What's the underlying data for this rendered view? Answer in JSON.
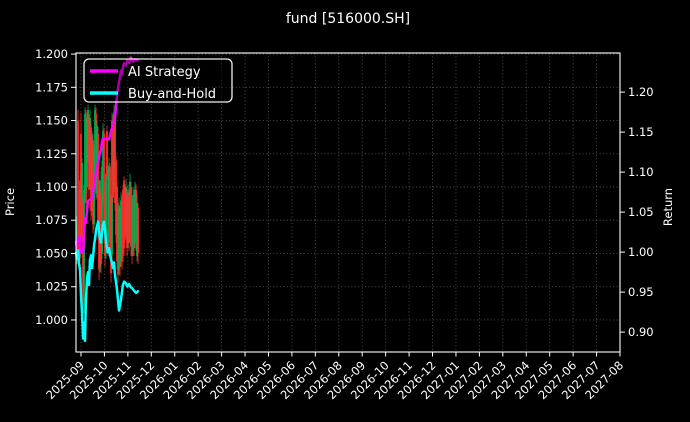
{
  "title": "fund [516000.SH]",
  "legend": {
    "items": [
      {
        "label": "AI Strategy",
        "color": "#ff00ff"
      },
      {
        "label": "Buy-and-Hold",
        "color": "#00ffff"
      }
    ]
  },
  "axes": {
    "x": {
      "tick_labels": [
        "2025-09",
        "2025-10",
        "2025-11",
        "2025-12",
        "2026-01",
        "2026-02",
        "2026-03",
        "2026-04",
        "2026-05",
        "2026-06",
        "2026-07",
        "2026-08",
        "2026-09",
        "2026-10",
        "2026-11",
        "2026-12",
        "2027-01",
        "2027-02",
        "2027-03",
        "2027-04",
        "2027-05",
        "2027-06",
        "2027-07",
        "2027-08"
      ],
      "rotation_deg": 45
    },
    "price": {
      "label": "Price",
      "ticks": [
        1.0,
        1.025,
        1.05,
        1.075,
        1.1,
        1.125,
        1.15,
        1.175,
        1.2
      ]
    },
    "return": {
      "label": "Return",
      "ticks": [
        0.9,
        0.95,
        1.0,
        1.05,
        1.1,
        1.15,
        1.2
      ]
    }
  },
  "colors": {
    "background": "#000000",
    "text": "#ffffff",
    "grid": "#aaaaaa",
    "spine": "#ffffff",
    "candle_up": "#00b050",
    "candle_down": "#ff2a2a",
    "ai_strategy": "#ff00ff",
    "buy_and_hold": "#00ffff"
  },
  "chart_data": {
    "type": "line",
    "title": "fund [516000.SH]",
    "subtitle": "",
    "x_unit": "months since 2025-09 (monthly ticks)",
    "categories": [
      "2025-09",
      "2025-10",
      "2025-11",
      "2025-12",
      "2026-01",
      "2026-02",
      "2026-03",
      "2026-04",
      "2026-05",
      "2026-06",
      "2026-07",
      "2026-08",
      "2026-09",
      "2026-10",
      "2026-11",
      "2026-12",
      "2027-01",
      "2027-02",
      "2027-03",
      "2027-04",
      "2027-05",
      "2027-06",
      "2027-07",
      "2027-08"
    ],
    "xlim": [
      -0.213,
      23.0
    ],
    "grid": "dotted, on left-axis price ticks and monthly x ticks",
    "legend_position": "upper left",
    "y_left": {
      "label": "Price",
      "lim": [
        0.9759,
        1.2008
      ],
      "ticks": [
        1.0,
        1.025,
        1.05,
        1.075,
        1.1,
        1.125,
        1.15,
        1.175,
        1.2
      ]
    },
    "y_right": {
      "label": "Return",
      "lim": [
        0.8751,
        1.2489
      ],
      "ticks": [
        0.9,
        0.95,
        1.0,
        1.05,
        1.1,
        1.15,
        1.2
      ]
    },
    "series": [
      {
        "name": "AI Strategy",
        "axis": "right",
        "color": "#ff00ff",
        "linewidth": 2.5,
        "x": [
          -0.213,
          -0.17,
          -0.12,
          -0.06,
          0.0,
          0.04,
          0.09,
          0.13,
          0.17,
          0.21,
          0.26,
          0.3,
          0.38,
          0.47,
          0.51,
          0.56,
          0.6,
          0.64,
          0.68,
          0.73,
          0.77,
          0.81,
          0.85,
          0.9,
          0.94,
          1.03,
          1.11,
          1.2,
          1.28,
          1.37,
          1.41,
          1.45,
          1.5,
          1.54,
          1.58,
          1.62,
          1.67,
          1.71,
          1.75,
          1.79,
          1.84,
          1.92,
          1.97,
          2.05,
          2.13,
          2.22,
          2.3,
          2.43
        ],
        "y": [
          1.013,
          1.005,
          1.018,
          1.02,
          0.999,
          1.004,
          1.0,
          1.021,
          1.042,
          1.037,
          1.053,
          1.064,
          1.066,
          1.067,
          1.075,
          1.084,
          1.092,
          1.1,
          1.109,
          1.112,
          1.118,
          1.125,
          1.127,
          1.139,
          1.142,
          1.141,
          1.142,
          1.141,
          1.151,
          1.16,
          1.163,
          1.168,
          1.183,
          1.196,
          1.205,
          1.213,
          1.22,
          1.227,
          1.222,
          1.231,
          1.236,
          1.233,
          1.24,
          1.236,
          1.243,
          1.238,
          1.241,
          1.24
        ]
      },
      {
        "name": "Buy-and-Hold",
        "axis": "right",
        "color": "#00ffff",
        "linewidth": 2.5,
        "x": [
          -0.213,
          -0.17,
          -0.12,
          -0.09,
          -0.04,
          0.0,
          0.04,
          0.09,
          0.13,
          0.17,
          0.21,
          0.26,
          0.3,
          0.34,
          0.38,
          0.43,
          0.47,
          0.51,
          0.56,
          0.6,
          0.64,
          0.68,
          0.73,
          0.77,
          0.81,
          0.85,
          0.9,
          0.94,
          0.98,
          1.03,
          1.07,
          1.11,
          1.15,
          1.2,
          1.24,
          1.32,
          1.37,
          1.41,
          1.45,
          1.5,
          1.54,
          1.58,
          1.62,
          1.67,
          1.71,
          1.75,
          1.79,
          1.84,
          1.92,
          1.97,
          2.05,
          2.13,
          2.18,
          2.26,
          2.35,
          2.43
        ],
        "y": [
          0.999,
          0.992,
          1.002,
          0.987,
          0.977,
          0.946,
          0.927,
          0.892,
          0.912,
          0.889,
          0.94,
          0.967,
          0.975,
          0.959,
          0.99,
          0.996,
          0.98,
          0.992,
          1.009,
          1.017,
          1.027,
          1.032,
          1.038,
          1.027,
          1.017,
          1.012,
          1.025,
          1.034,
          1.038,
          1.027,
          1.012,
          1.005,
          1.0,
          1.005,
          0.996,
          0.987,
          0.98,
          0.987,
          0.971,
          0.962,
          0.952,
          0.94,
          0.927,
          0.934,
          0.942,
          0.95,
          0.959,
          0.963,
          0.961,
          0.957,
          0.96,
          0.956,
          0.955,
          0.952,
          0.949,
          0.951
        ]
      }
    ],
    "candlesticks": {
      "axis": "left",
      "up_color": "#00b050",
      "down_color": "#ff2a2a",
      "t_start": -0.17,
      "t_step": 0.0427,
      "ohlc": [
        [
          1.05,
          1.078,
          1.042,
          1.072
        ],
        [
          1.15,
          1.158,
          1.048,
          1.07
        ],
        [
          1.072,
          1.098,
          1.038,
          1.045
        ],
        [
          1.048,
          1.112,
          1.045,
          1.105
        ],
        [
          1.14,
          1.156,
          1.047,
          1.062
        ],
        [
          1.062,
          1.122,
          1.058,
          1.118
        ],
        [
          1.088,
          1.092,
          1.002,
          1.012
        ],
        [
          1.01,
          1.102,
          1.005,
          1.098
        ],
        [
          1.095,
          1.16,
          1.088,
          1.155
        ],
        [
          1.152,
          1.158,
          1.082,
          1.088
        ],
        [
          1.1,
          1.156,
          1.095,
          1.15
        ],
        [
          1.122,
          1.162,
          1.118,
          1.158
        ],
        [
          1.15,
          1.155,
          1.092,
          1.098
        ],
        [
          1.1,
          1.158,
          1.098,
          1.152
        ],
        [
          1.145,
          1.15,
          1.075,
          1.082
        ],
        [
          1.082,
          1.142,
          1.078,
          1.138
        ],
        [
          1.135,
          1.14,
          1.065,
          1.072
        ],
        [
          1.072,
          1.132,
          1.068,
          1.128
        ],
        [
          1.102,
          1.162,
          1.098,
          1.158
        ],
        [
          1.155,
          1.16,
          1.09,
          1.095
        ],
        [
          1.095,
          1.15,
          1.092,
          1.146
        ],
        [
          1.14,
          1.145,
          1.06,
          1.068
        ],
        [
          1.1,
          1.105,
          1.03,
          1.038
        ],
        [
          1.04,
          1.112,
          1.036,
          1.105
        ],
        [
          1.095,
          1.098,
          1.035,
          1.042
        ],
        [
          1.05,
          1.12,
          1.046,
          1.115
        ],
        [
          1.09,
          1.148,
          1.086,
          1.142
        ],
        [
          1.14,
          1.144,
          1.068,
          1.075
        ],
        [
          1.1,
          1.104,
          1.04,
          1.048
        ],
        [
          1.05,
          1.116,
          1.046,
          1.11
        ],
        [
          1.142,
          1.146,
          1.105,
          1.108
        ],
        [
          1.11,
          1.114,
          1.048,
          1.055
        ],
        [
          1.058,
          1.122,
          1.054,
          1.116
        ],
        [
          1.115,
          1.118,
          1.052,
          1.058
        ],
        [
          1.09,
          1.094,
          1.028,
          1.035
        ],
        [
          1.05,
          1.156,
          1.046,
          1.15
        ],
        [
          1.15,
          1.154,
          1.088,
          1.092
        ],
        [
          1.1,
          1.162,
          1.096,
          1.156
        ],
        [
          1.155,
          1.158,
          1.082,
          1.088
        ],
        [
          1.12,
          1.124,
          1.058,
          1.064
        ],
        [
          1.1,
          1.104,
          1.038,
          1.044
        ],
        [
          1.085,
          1.088,
          1.028,
          1.034
        ],
        [
          1.038,
          1.092,
          1.034,
          1.086
        ],
        [
          1.08,
          1.084,
          1.033,
          1.04
        ],
        [
          1.044,
          1.096,
          1.04,
          1.09
        ],
        [
          1.09,
          1.094,
          1.038,
          1.044
        ],
        [
          1.098,
          1.102,
          1.044,
          1.05
        ],
        [
          1.105,
          1.108,
          1.048,
          1.054
        ],
        [
          1.1,
          1.102,
          1.058,
          1.062
        ],
        [
          1.064,
          1.106,
          1.06,
          1.1
        ],
        [
          1.095,
          1.098,
          1.048,
          1.054
        ],
        [
          1.058,
          1.102,
          1.054,
          1.096
        ],
        [
          1.094,
          1.098,
          1.052,
          1.058
        ],
        [
          1.062,
          1.11,
          1.058,
          1.104
        ],
        [
          1.1,
          1.104,
          1.048,
          1.055
        ],
        [
          1.088,
          1.092,
          1.042,
          1.048
        ],
        [
          1.052,
          1.1,
          1.048,
          1.094
        ],
        [
          1.094,
          1.098,
          1.048,
          1.054
        ],
        [
          1.058,
          1.104,
          1.054,
          1.098
        ],
        [
          1.098,
          1.102,
          1.052,
          1.058
        ],
        [
          1.048,
          1.094,
          1.044,
          1.088
        ],
        [
          1.084,
          1.088,
          1.042,
          1.05
        ]
      ]
    }
  }
}
